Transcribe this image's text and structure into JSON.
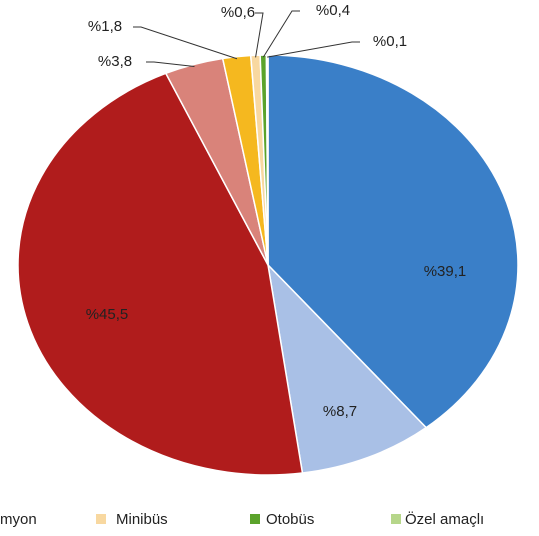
{
  "chart_data": {
    "type": "pie",
    "categories": [
      null,
      null,
      null,
      null,
      "myon",
      "Minibüs",
      "Otobüs",
      "Özel amaçlı"
    ],
    "values": [
      39.1,
      8.7,
      45.5,
      3.8,
      1.8,
      0.6,
      0.4,
      0.1
    ],
    "value_labels": [
      "%39,1",
      "%8,7",
      "%45,5",
      "%3,8",
      "%1,8",
      "%0,6",
      "%0,4",
      "%0,1"
    ],
    "colors": [
      "#3a7fc8",
      "#a9c0e6",
      "#b01c1c",
      "#d9837a",
      "#f5b81f",
      "#f8d8a0",
      "#5ba32b",
      "#b6d68a"
    ],
    "legend": "bottom"
  }
}
